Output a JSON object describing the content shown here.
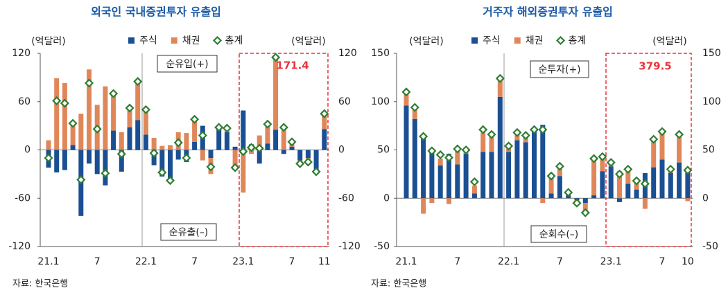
{
  "chart_data": [
    {
      "type": "bar",
      "title": "외국인 국내증권투자 유출입",
      "ylabel": "(억달러)",
      "y2label": "(억달러)",
      "source": "자료: 한국은행",
      "categories": [
        "21.1",
        null,
        null,
        null,
        null,
        null,
        "7",
        null,
        null,
        null,
        null,
        null,
        "22.1",
        null,
        null,
        null,
        null,
        null,
        "7",
        null,
        null,
        null,
        null,
        null,
        "23.1",
        null,
        null,
        null,
        null,
        null,
        "7",
        null,
        null,
        null,
        "11"
      ],
      "series": [
        {
          "name": "주식",
          "type": "bar",
          "color": "#1b4f93",
          "values": [
            -22,
            -28,
            -25,
            6,
            -82,
            -17,
            -30,
            -44,
            24,
            -27,
            28,
            37,
            19,
            -19,
            -33,
            -37,
            -12,
            -15,
            10,
            30,
            -10,
            28,
            22,
            4,
            49,
            7,
            -17,
            8,
            25,
            -5,
            4,
            -13,
            -10,
            -25,
            26
          ]
        },
        {
          "name": "채권",
          "type": "bar",
          "color": "#e0875a",
          "values": [
            12,
            89,
            83,
            27,
            45,
            100,
            56,
            79,
            46,
            22,
            24,
            48,
            31,
            15,
            5,
            6,
            22,
            21,
            28,
            -13,
            -20,
            0,
            5,
            -25,
            -53,
            -5,
            18,
            24,
            90,
            30,
            6,
            -4,
            -5,
            0,
            21
          ]
        },
        {
          "name": "총계",
          "type": "scatter",
          "color": "#2e7d32",
          "values": [
            -10,
            61,
            58,
            33,
            -37,
            83,
            26,
            -29,
            70,
            -5,
            52,
            85,
            50,
            -4,
            -28,
            -38,
            9,
            -10,
            38,
            18,
            -21,
            28,
            27,
            -22,
            -2,
            3,
            2,
            32,
            115,
            28,
            10,
            -17,
            -15,
            -27,
            45
          ]
        }
      ],
      "ylim": [
        -120,
        120
      ],
      "yticks": [
        -120,
        -60,
        0,
        60,
        120
      ],
      "y2lim": [
        -120,
        120
      ],
      "y2ticks": [
        -120,
        -60,
        0,
        60,
        120
      ],
      "annotations": [
        "순유입(+)",
        "순유출(–)",
        "171.4"
      ]
    },
    {
      "type": "bar",
      "title": "거주자 해외증권투자 유출입",
      "ylabel": "(억달러)",
      "y2label": "(억달러)",
      "source": "자료: 한국은행",
      "categories": [
        "21.1",
        null,
        null,
        null,
        null,
        null,
        "7",
        null,
        null,
        null,
        null,
        null,
        "22.1",
        null,
        null,
        null,
        null,
        null,
        "7",
        null,
        null,
        null,
        null,
        null,
        "23.1",
        null,
        null,
        null,
        null,
        null,
        "7",
        null,
        null,
        "10"
      ],
      "series": [
        {
          "name": "주식",
          "type": "bar",
          "color": "#1b4f93",
          "values": [
            96,
            82,
            62,
            50,
            34,
            46,
            35,
            46,
            5,
            48,
            48,
            105,
            48,
            60,
            58,
            70,
            76,
            5,
            23,
            3,
            -2,
            -5,
            3,
            28,
            33,
            -4,
            15,
            9,
            26,
            32,
            40,
            26,
            37,
            28
          ]
        },
        {
          "name": "채권",
          "type": "bar",
          "color": "#e0875a",
          "values": [
            14,
            12,
            -16,
            -5,
            7,
            -6,
            15,
            3,
            8,
            20,
            17,
            17,
            5,
            7,
            6,
            0,
            -5,
            17,
            10,
            3,
            -5,
            -10,
            38,
            15,
            3,
            28,
            15,
            9,
            -11,
            28,
            27,
            3,
            28,
            -3
          ]
        },
        {
          "name": "총계",
          "type": "scatter",
          "color": "#2e7d32",
          "values": [
            110,
            94,
            64,
            49,
            45,
            42,
            51,
            50,
            17,
            71,
            66,
            124,
            54,
            68,
            65,
            71,
            71,
            23,
            33,
            6,
            -5,
            -15,
            41,
            43,
            37,
            25,
            30,
            18,
            15,
            61,
            69,
            30,
            66,
            29
          ]
        }
      ],
      "ylim": [
        -50,
        150
      ],
      "yticks": [
        -50,
        0,
        50,
        100,
        150
      ],
      "y2lim": [
        -50,
        150
      ],
      "y2ticks": [
        -50,
        0,
        50,
        100,
        150
      ],
      "annotations": [
        "순투자(+)",
        "순회수(–)",
        "379.5"
      ]
    }
  ]
}
